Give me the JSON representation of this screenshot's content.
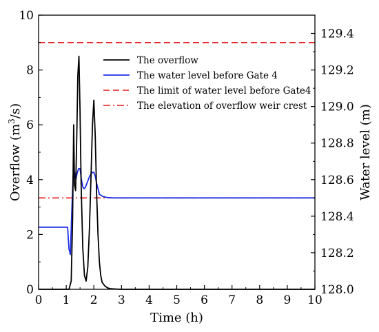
{
  "chart_data": {
    "type": "line",
    "xlabel": "Time (h)",
    "ylabel_left": "Overflow (m³/s)",
    "ylabel_left_text": "Overflow (m",
    "ylabel_left_sup": "3",
    "ylabel_left_tail": "/s)",
    "ylabel_right": "Water level (m)",
    "xlim": [
      0,
      10
    ],
    "ylim_left": [
      0,
      10
    ],
    "ylim_right": [
      128.0,
      129.5
    ],
    "x_ticks": [
      "0",
      "1",
      "2",
      "3",
      "4",
      "5",
      "6",
      "7",
      "8",
      "9",
      "10"
    ],
    "y_left_ticks": [
      "0",
      "2",
      "4",
      "6",
      "8",
      "10"
    ],
    "y_right_ticks": [
      "128.0",
      "128.2",
      "128.4",
      "128.6",
      "128.8",
      "129.0",
      "129.2",
      "129.4"
    ],
    "legend_placement": "top-right",
    "grid": false,
    "series": [
      {
        "name": "The overflow",
        "axis": "left",
        "color": "#000000",
        "style": "solid",
        "x": [
          0,
          1.1,
          1.18,
          1.23,
          1.27,
          1.3,
          1.34,
          1.38,
          1.42,
          1.46,
          1.5,
          1.54,
          1.6,
          1.66,
          1.72,
          1.78,
          1.84,
          1.9,
          1.95,
          2.0,
          2.05,
          2.1,
          2.15,
          2.2,
          2.25,
          2.3,
          2.4,
          2.5,
          2.6,
          2.8,
          3.0,
          10
        ],
        "y": [
          0,
          0,
          0.3,
          2.5,
          6.0,
          3.8,
          3.6,
          5.5,
          7.8,
          8.5,
          6.5,
          3.8,
          1.5,
          0.5,
          0.3,
          0.8,
          2.2,
          4.2,
          6.0,
          6.9,
          5.6,
          3.5,
          2.0,
          1.0,
          0.5,
          0.25,
          0.12,
          0.05,
          0.02,
          0.01,
          0,
          0
        ]
      },
      {
        "name": "The water level before Gate 4",
        "axis": "right",
        "color": "#1f2ee6",
        "style": "solid",
        "x": [
          0,
          1.05,
          1.1,
          1.15,
          1.2,
          1.25,
          1.3,
          1.35,
          1.4,
          1.45,
          1.5,
          1.55,
          1.6,
          1.65,
          1.7,
          1.75,
          1.8,
          1.85,
          1.9,
          1.95,
          2.0,
          2.05,
          2.1,
          2.15,
          2.2,
          2.3,
          2.4,
          2.5,
          2.7,
          3.0,
          10
        ],
        "y": [
          128.34,
          128.34,
          128.22,
          128.19,
          128.42,
          128.62,
          128.64,
          128.6,
          128.64,
          128.66,
          128.66,
          128.6,
          128.56,
          128.55,
          128.56,
          128.58,
          128.6,
          128.62,
          128.63,
          128.64,
          128.64,
          128.62,
          128.58,
          128.55,
          128.52,
          128.51,
          128.505,
          128.502,
          128.5,
          128.5,
          128.5
        ]
      },
      {
        "name": "The limit of water level before Gate4",
        "axis": "right",
        "color": "#e31a1c",
        "style": "dashed",
        "x": [
          0,
          10
        ],
        "y": [
          129.35,
          129.35
        ]
      },
      {
        "name": "The elevation of overflow weir crest",
        "axis": "right",
        "color": "#e31a1c",
        "style": "dashdot",
        "x": [
          0,
          10
        ],
        "y": [
          128.5,
          128.5
        ]
      }
    ]
  }
}
